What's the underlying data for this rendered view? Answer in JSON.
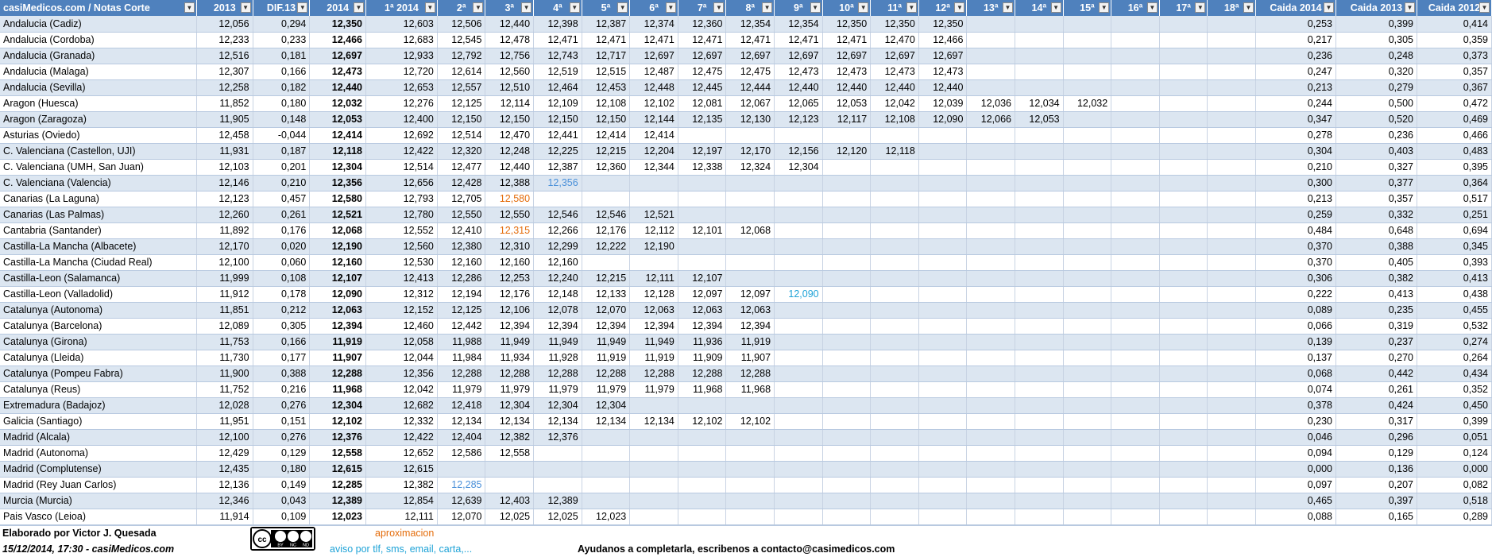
{
  "header": {
    "columns": [
      "casiMedicos.com / Notas Corte",
      "2013",
      "DIF.13",
      "2014",
      "1ª 2014",
      "2ª",
      "3ª",
      "4ª",
      "5ª",
      "6ª",
      "7ª",
      "8ª",
      "9ª",
      "10ª",
      "11ª",
      "12ª",
      "13ª",
      "14ª",
      "15ª",
      "16ª",
      "17ª",
      "18ª",
      "Caida 2014",
      "Caida 2013",
      "Caida 2012"
    ],
    "filter_icon": "chevron-down-icon",
    "sort_icon": "sort-filter-icon"
  },
  "rows": [
    {
      "name": "Andalucia (Cadiz)",
      "cells": [
        "12,056",
        "0,294",
        "12,350",
        "12,603",
        "12,506",
        "12,440",
        "12,398",
        "12,387",
        "12,374",
        "12,360",
        "12,354",
        "12,354",
        "12,350",
        "12,350",
        "12,350",
        "",
        "",
        "",
        "",
        "",
        "",
        "0,253",
        "0,399",
        "0,414"
      ]
    },
    {
      "name": "Andalucia (Cordoba)",
      "cells": [
        "12,233",
        "0,233",
        "12,466",
        "12,683",
        "12,545",
        "12,478",
        "12,471",
        "12,471",
        "12,471",
        "12,471",
        "12,471",
        "12,471",
        "12,471",
        "12,470",
        "12,466",
        "",
        "",
        "",
        "",
        "",
        "",
        "0,217",
        "0,305",
        "0,359"
      ]
    },
    {
      "name": "Andalucia (Granada)",
      "cells": [
        "12,516",
        "0,181",
        "12,697",
        "12,933",
        "12,792",
        "12,756",
        "12,743",
        "12,717",
        "12,697",
        "12,697",
        "12,697",
        "12,697",
        "12,697",
        "12,697",
        "12,697",
        "",
        "",
        "",
        "",
        "",
        "",
        "0,236",
        "0,248",
        "0,373"
      ]
    },
    {
      "name": "Andalucia (Malaga)",
      "cells": [
        "12,307",
        "0,166",
        "12,473",
        "12,720",
        "12,614",
        "12,560",
        "12,519",
        "12,515",
        "12,487",
        "12,475",
        "12,475",
        "12,473",
        "12,473",
        "12,473",
        "12,473",
        "",
        "",
        "",
        "",
        "",
        "",
        "0,247",
        "0,320",
        "0,357"
      ]
    },
    {
      "name": "Andalucia (Sevilla)",
      "cells": [
        "12,258",
        "0,182",
        "12,440",
        "12,653",
        "12,557",
        "12,510",
        "12,464",
        "12,453",
        "12,448",
        "12,445",
        "12,444",
        "12,440",
        "12,440",
        "12,440",
        "12,440",
        "",
        "",
        "",
        "",
        "",
        "",
        "0,213",
        "0,279",
        "0,367"
      ]
    },
    {
      "name": "Aragon (Huesca)",
      "cells": [
        "11,852",
        "0,180",
        "12,032",
        "12,276",
        "12,125",
        "12,114",
        "12,109",
        "12,108",
        "12,102",
        "12,081",
        "12,067",
        "12,065",
        "12,053",
        "12,042",
        "12,039",
        "12,036",
        "12,034",
        "12,032",
        "",
        "",
        "",
        "0,244",
        "0,500",
        "0,472"
      ]
    },
    {
      "name": "Aragon (Zaragoza)",
      "cells": [
        "11,905",
        "0,148",
        "12,053",
        "12,400",
        "12,150",
        "12,150",
        "12,150",
        "12,150",
        "12,144",
        "12,135",
        "12,130",
        "12,123",
        "12,117",
        "12,108",
        "12,090",
        "12,066",
        "12,053",
        "",
        "",
        "",
        "",
        "0,347",
        "0,520",
        "0,469"
      ]
    },
    {
      "name": "Asturias (Oviedo)",
      "cells": [
        "12,458",
        "-0,044",
        "12,414",
        "12,692",
        "12,514",
        "12,470",
        "12,441",
        "12,414",
        "12,414",
        "",
        "",
        "",
        "",
        "",
        "",
        "",
        "",
        "",
        "",
        "",
        "",
        "0,278",
        "0,236",
        "0,466"
      ]
    },
    {
      "name": "C. Valenciana (Castellon, UJI)",
      "cells": [
        "11,931",
        "0,187",
        "12,118",
        "12,422",
        "12,320",
        "12,248",
        "12,225",
        "12,215",
        "12,204",
        "12,197",
        "12,170",
        "12,156",
        "12,120",
        "12,118",
        "",
        "",
        "",
        "",
        "",
        "",
        "",
        "0,304",
        "0,403",
        "0,483"
      ]
    },
    {
      "name": "C. Valenciana (UMH, San Juan)",
      "cells": [
        "12,103",
        "0,201",
        "12,304",
        "12,514",
        "12,477",
        "12,440",
        "12,387",
        "12,360",
        "12,344",
        "12,338",
        "12,324",
        "12,304",
        "",
        "",
        "",
        "",
        "",
        "",
        "",
        "",
        "",
        "0,210",
        "0,327",
        "0,395"
      ]
    },
    {
      "name": "C. Valenciana (Valencia)",
      "cells": [
        "12,146",
        "0,210",
        "12,356",
        "12,656",
        "12,428",
        "12,388",
        "12,356",
        "",
        "",
        "",
        "",
        "",
        "",
        "",
        "",
        "",
        "",
        "",
        "",
        "",
        "",
        "0,300",
        "0,377",
        "0,364"
      ],
      "hl": {
        "6": "hl-blue"
      }
    },
    {
      "name": "Canarias (La Laguna)",
      "cells": [
        "12,123",
        "0,457",
        "12,580",
        "12,793",
        "12,705",
        "12,580",
        "",
        "",
        "",
        "",
        "",
        "",
        "",
        "",
        "",
        "",
        "",
        "",
        "",
        "",
        "",
        "0,213",
        "0,357",
        "0,517"
      ],
      "hl": {
        "5": "hl-orange"
      }
    },
    {
      "name": "Canarias (Las Palmas)",
      "cells": [
        "12,260",
        "0,261",
        "12,521",
        "12,780",
        "12,550",
        "12,550",
        "12,546",
        "12,546",
        "12,521",
        "",
        "",
        "",
        "",
        "",
        "",
        "",
        "",
        "",
        "",
        "",
        "",
        "0,259",
        "0,332",
        "0,251"
      ]
    },
    {
      "name": "Cantabria (Santander)",
      "cells": [
        "11,892",
        "0,176",
        "12,068",
        "12,552",
        "12,410",
        "12,315",
        "12,266",
        "12,176",
        "12,112",
        "12,101",
        "12,068",
        "",
        "",
        "",
        "",
        "",
        "",
        "",
        "",
        "",
        "",
        "0,484",
        "0,648",
        "0,694"
      ],
      "hl": {
        "5": "hl-orange"
      }
    },
    {
      "name": "Castilla-La Mancha (Albacete)",
      "cells": [
        "12,170",
        "0,020",
        "12,190",
        "12,560",
        "12,380",
        "12,310",
        "12,299",
        "12,222",
        "12,190",
        "",
        "",
        "",
        "",
        "",
        "",
        "",
        "",
        "",
        "",
        "",
        "",
        "0,370",
        "0,388",
        "0,345"
      ]
    },
    {
      "name": "Castilla-La Mancha (Ciudad Real)",
      "cells": [
        "12,100",
        "0,060",
        "12,160",
        "12,530",
        "12,160",
        "12,160",
        "12,160",
        "",
        "",
        "",
        "",
        "",
        "",
        "",
        "",
        "",
        "",
        "",
        "",
        "",
        "",
        "0,370",
        "0,405",
        "0,393"
      ]
    },
    {
      "name": "Castilla-Leon (Salamanca)",
      "cells": [
        "11,999",
        "0,108",
        "12,107",
        "12,413",
        "12,286",
        "12,253",
        "12,240",
        "12,215",
        "12,111",
        "12,107",
        "",
        "",
        "",
        "",
        "",
        "",
        "",
        "",
        "",
        "",
        "",
        "0,306",
        "0,382",
        "0,413"
      ]
    },
    {
      "name": "Castilla-Leon (Valladolid)",
      "cells": [
        "11,912",
        "0,178",
        "12,090",
        "12,312",
        "12,194",
        "12,176",
        "12,148",
        "12,133",
        "12,128",
        "12,097",
        "12,097",
        "12,090",
        "",
        "",
        "",
        "",
        "",
        "",
        "",
        "",
        "",
        "0,222",
        "0,413",
        "0,438"
      ],
      "hl": {
        "11": "hl-teal"
      }
    },
    {
      "name": "Catalunya (Autonoma)",
      "cells": [
        "11,851",
        "0,212",
        "12,063",
        "12,152",
        "12,125",
        "12,106",
        "12,078",
        "12,070",
        "12,063",
        "12,063",
        "12,063",
        "",
        "",
        "",
        "",
        "",
        "",
        "",
        "",
        "",
        "",
        "0,089",
        "0,235",
        "0,455"
      ]
    },
    {
      "name": "Catalunya (Barcelona)",
      "cells": [
        "12,089",
        "0,305",
        "12,394",
        "12,460",
        "12,442",
        "12,394",
        "12,394",
        "12,394",
        "12,394",
        "12,394",
        "12,394",
        "",
        "",
        "",
        "",
        "",
        "",
        "",
        "",
        "",
        "",
        "0,066",
        "0,319",
        "0,532"
      ]
    },
    {
      "name": "Catalunya (Girona)",
      "cells": [
        "11,753",
        "0,166",
        "11,919",
        "12,058",
        "11,988",
        "11,949",
        "11,949",
        "11,949",
        "11,949",
        "11,936",
        "11,919",
        "",
        "",
        "",
        "",
        "",
        "",
        "",
        "",
        "",
        "",
        "0,139",
        "0,237",
        "0,274"
      ]
    },
    {
      "name": "Catalunya (Lleida)",
      "cells": [
        "11,730",
        "0,177",
        "11,907",
        "12,044",
        "11,984",
        "11,934",
        "11,928",
        "11,919",
        "11,919",
        "11,909",
        "11,907",
        "",
        "",
        "",
        "",
        "",
        "",
        "",
        "",
        "",
        "",
        "0,137",
        "0,270",
        "0,264"
      ]
    },
    {
      "name": "Catalunya (Pompeu Fabra)",
      "cells": [
        "11,900",
        "0,388",
        "12,288",
        "12,356",
        "12,288",
        "12,288",
        "12,288",
        "12,288",
        "12,288",
        "12,288",
        "12,288",
        "",
        "",
        "",
        "",
        "",
        "",
        "",
        "",
        "",
        "",
        "0,068",
        "0,442",
        "0,434"
      ]
    },
    {
      "name": "Catalunya (Reus)",
      "cells": [
        "11,752",
        "0,216",
        "11,968",
        "12,042",
        "11,979",
        "11,979",
        "11,979",
        "11,979",
        "11,979",
        "11,968",
        "11,968",
        "",
        "",
        "",
        "",
        "",
        "",
        "",
        "",
        "",
        "",
        "0,074",
        "0,261",
        "0,352"
      ]
    },
    {
      "name": "Extremadura (Badajoz)",
      "cells": [
        "12,028",
        "0,276",
        "12,304",
        "12,682",
        "12,418",
        "12,304",
        "12,304",
        "12,304",
        "",
        "",
        "",
        "",
        "",
        "",
        "",
        "",
        "",
        "",
        "",
        "",
        "",
        "0,378",
        "0,424",
        "0,450"
      ]
    },
    {
      "name": "Galicia (Santiago)",
      "cells": [
        "11,951",
        "0,151",
        "12,102",
        "12,332",
        "12,134",
        "12,134",
        "12,134",
        "12,134",
        "12,134",
        "12,102",
        "12,102",
        "",
        "",
        "",
        "",
        "",
        "",
        "",
        "",
        "",
        "",
        "0,230",
        "0,317",
        "0,399"
      ]
    },
    {
      "name": "Madrid (Alcala)",
      "cells": [
        "12,100",
        "0,276",
        "12,376",
        "12,422",
        "12,404",
        "12,382",
        "12,376",
        "",
        "",
        "",
        "",
        "",
        "",
        "",
        "",
        "",
        "",
        "",
        "",
        "",
        "",
        "0,046",
        "0,296",
        "0,051"
      ]
    },
    {
      "name": "Madrid (Autonoma)",
      "cells": [
        "12,429",
        "0,129",
        "12,558",
        "12,652",
        "12,586",
        "12,558",
        "",
        "",
        "",
        "",
        "",
        "",
        "",
        "",
        "",
        "",
        "",
        "",
        "",
        "",
        "",
        "0,094",
        "0,129",
        "0,124"
      ]
    },
    {
      "name": "Madrid (Complutense)",
      "cells": [
        "12,435",
        "0,180",
        "12,615",
        "12,615",
        "",
        "",
        "",
        "",
        "",
        "",
        "",
        "",
        "",
        "",
        "",
        "",
        "",
        "",
        "",
        "",
        "",
        "0,000",
        "0,136",
        "0,000"
      ]
    },
    {
      "name": "Madrid (Rey Juan Carlos)",
      "cells": [
        "12,136",
        "0,149",
        "12,285",
        "12,382",
        "12,285",
        "",
        "",
        "",
        "",
        "",
        "",
        "",
        "",
        "",
        "",
        "",
        "",
        "",
        "",
        "",
        "",
        "0,097",
        "0,207",
        "0,082"
      ],
      "hl": {
        "4": "hl-blue"
      }
    },
    {
      "name": "Murcia (Murcia)",
      "cells": [
        "12,346",
        "0,043",
        "12,389",
        "12,854",
        "12,639",
        "12,403",
        "12,389",
        "",
        "",
        "",
        "",
        "",
        "",
        "",
        "",
        "",
        "",
        "",
        "",
        "",
        "",
        "0,465",
        "0,397",
        "0,518"
      ]
    },
    {
      "name": "Pais Vasco (Leioa)",
      "cells": [
        "11,914",
        "0,109",
        "12,023",
        "12,111",
        "12,070",
        "12,025",
        "12,025",
        "12,023",
        "",
        "",
        "",
        "",
        "",
        "",
        "",
        "",
        "",
        "",
        "",
        "",
        "",
        "0,088",
        "0,165",
        "0,289"
      ]
    }
  ],
  "footer": {
    "author": "Elaborado por Victor J. Quesada",
    "date": "15/12/2014, 17:30 - casiMedicos.com",
    "approx": "aproximacion",
    "notice": "aviso por tlf, sms, email, carta,...",
    "help": "Ayudanos a completarla, escribenos a contacto@casimedicos.com",
    "cc_badge": {
      "icon": "creative-commons-by-nc-nd-icon",
      "labels": [
        "BY",
        "NC",
        "ND"
      ]
    }
  }
}
